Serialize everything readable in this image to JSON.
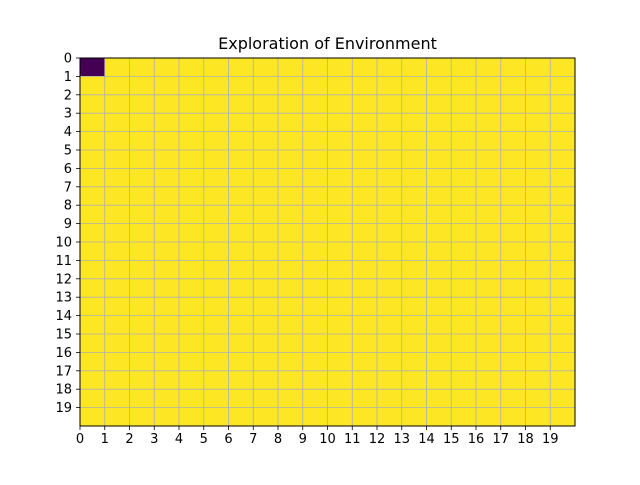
{
  "chart_data": {
    "type": "heatmap",
    "title": "Exploration of Environment",
    "xlabel": "",
    "ylabel": "",
    "rows": 20,
    "cols": 20,
    "x_ticks": [
      "0",
      "1",
      "2",
      "3",
      "4",
      "5",
      "6",
      "7",
      "8",
      "9",
      "10",
      "11",
      "12",
      "13",
      "14",
      "15",
      "16",
      "17",
      "18",
      "19"
    ],
    "y_ticks": [
      "0",
      "1",
      "2",
      "3",
      "4",
      "5",
      "6",
      "7",
      "8",
      "9",
      "10",
      "11",
      "12",
      "13",
      "14",
      "15",
      "16",
      "17",
      "18",
      "19"
    ],
    "x_range": [
      0,
      20
    ],
    "y_range": [
      0,
      20
    ],
    "y_inverted": true,
    "grid": true,
    "colormap": "viridis",
    "colors": {
      "low": "#440154",
      "high": "#fde725",
      "grid": "#b0b0b0"
    },
    "values": [
      [
        0,
        1,
        1,
        1,
        1,
        1,
        1,
        1,
        1,
        1,
        1,
        1,
        1,
        1,
        1,
        1,
        1,
        1,
        1,
        1
      ],
      [
        1,
        1,
        1,
        1,
        1,
        1,
        1,
        1,
        1,
        1,
        1,
        1,
        1,
        1,
        1,
        1,
        1,
        1,
        1,
        1
      ],
      [
        1,
        1,
        1,
        1,
        1,
        1,
        1,
        1,
        1,
        1,
        1,
        1,
        1,
        1,
        1,
        1,
        1,
        1,
        1,
        1
      ],
      [
        1,
        1,
        1,
        1,
        1,
        1,
        1,
        1,
        1,
        1,
        1,
        1,
        1,
        1,
        1,
        1,
        1,
        1,
        1,
        1
      ],
      [
        1,
        1,
        1,
        1,
        1,
        1,
        1,
        1,
        1,
        1,
        1,
        1,
        1,
        1,
        1,
        1,
        1,
        1,
        1,
        1
      ],
      [
        1,
        1,
        1,
        1,
        1,
        1,
        1,
        1,
        1,
        1,
        1,
        1,
        1,
        1,
        1,
        1,
        1,
        1,
        1,
        1
      ],
      [
        1,
        1,
        1,
        1,
        1,
        1,
        1,
        1,
        1,
        1,
        1,
        1,
        1,
        1,
        1,
        1,
        1,
        1,
        1,
        1
      ],
      [
        1,
        1,
        1,
        1,
        1,
        1,
        1,
        1,
        1,
        1,
        1,
        1,
        1,
        1,
        1,
        1,
        1,
        1,
        1,
        1
      ],
      [
        1,
        1,
        1,
        1,
        1,
        1,
        1,
        1,
        1,
        1,
        1,
        1,
        1,
        1,
        1,
        1,
        1,
        1,
        1,
        1
      ],
      [
        1,
        1,
        1,
        1,
        1,
        1,
        1,
        1,
        1,
        1,
        1,
        1,
        1,
        1,
        1,
        1,
        1,
        1,
        1,
        1
      ],
      [
        1,
        1,
        1,
        1,
        1,
        1,
        1,
        1,
        1,
        1,
        1,
        1,
        1,
        1,
        1,
        1,
        1,
        1,
        1,
        1
      ],
      [
        1,
        1,
        1,
        1,
        1,
        1,
        1,
        1,
        1,
        1,
        1,
        1,
        1,
        1,
        1,
        1,
        1,
        1,
        1,
        1
      ],
      [
        1,
        1,
        1,
        1,
        1,
        1,
        1,
        1,
        1,
        1,
        1,
        1,
        1,
        1,
        1,
        1,
        1,
        1,
        1,
        1
      ],
      [
        1,
        1,
        1,
        1,
        1,
        1,
        1,
        1,
        1,
        1,
        1,
        1,
        1,
        1,
        1,
        1,
        1,
        1,
        1,
        1
      ],
      [
        1,
        1,
        1,
        1,
        1,
        1,
        1,
        1,
        1,
        1,
        1,
        1,
        1,
        1,
        1,
        1,
        1,
        1,
        1,
        1
      ],
      [
        1,
        1,
        1,
        1,
        1,
        1,
        1,
        1,
        1,
        1,
        1,
        1,
        1,
        1,
        1,
        1,
        1,
        1,
        1,
        1
      ],
      [
        1,
        1,
        1,
        1,
        1,
        1,
        1,
        1,
        1,
        1,
        1,
        1,
        1,
        1,
        1,
        1,
        1,
        1,
        1,
        1
      ],
      [
        1,
        1,
        1,
        1,
        1,
        1,
        1,
        1,
        1,
        1,
        1,
        1,
        1,
        1,
        1,
        1,
        1,
        1,
        1,
        1
      ],
      [
        1,
        1,
        1,
        1,
        1,
        1,
        1,
        1,
        1,
        1,
        1,
        1,
        1,
        1,
        1,
        1,
        1,
        1,
        1,
        1
      ],
      [
        1,
        1,
        1,
        1,
        1,
        1,
        1,
        1,
        1,
        1,
        1,
        1,
        1,
        1,
        1,
        1,
        1,
        1,
        1,
        1
      ]
    ]
  }
}
